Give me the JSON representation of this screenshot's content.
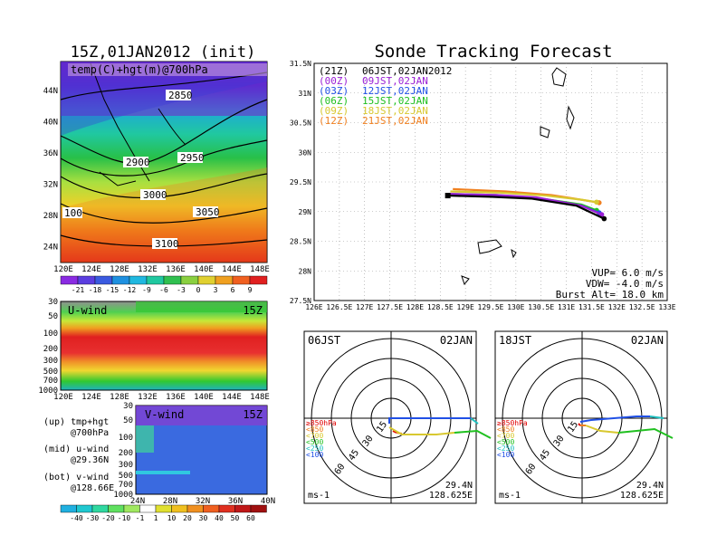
{
  "left": {
    "title": "15Z,01JAN2012 (init)",
    "map_label": "temp(C)+hgt(m)@700hPa",
    "lat_ticks": [
      "44N",
      "40N",
      "36N",
      "32N",
      "28N",
      "24N"
    ],
    "lon_ticks": [
      "120E",
      "124E",
      "128E",
      "132E",
      "136E",
      "140E",
      "144E",
      "148E"
    ],
    "contour_labels": [
      "2850",
      "2900",
      "2950",
      "3000",
      "3050",
      "3100",
      "100"
    ],
    "colorbar_ticks": [
      "-21",
      "-18",
      "-15",
      "-12",
      "-9",
      "-6",
      "-3",
      "0",
      "3",
      "6",
      "9"
    ],
    "u_label": "U-wind",
    "u_time": "15Z",
    "p_ticks": [
      "30",
      "50",
      "100",
      "200",
      "300",
      "500",
      "700",
      "1000"
    ],
    "v_label": "V-wind",
    "v_time": "15Z",
    "v_lat_ticks": [
      "24N",
      "28N",
      "32N",
      "36N",
      "40N"
    ],
    "wind_colorbar_ticks": [
      "-40",
      "-30",
      "-20",
      "-10",
      "-1",
      "1",
      "10",
      "20",
      "30",
      "40",
      "50",
      "60"
    ],
    "legend_up_1": "(up) tmp+hgt",
    "legend_up_2": "@700hPa",
    "legend_mid_1": "(mid) u-wind",
    "legend_mid_2": "@29.36N",
    "legend_bot_1": "(bot) v-wind",
    "legend_bot_2": "@128.66E"
  },
  "right": {
    "title": "Sonde Tracking Forecast",
    "lat_ticks": [
      "31.5N",
      "31N",
      "30.5N",
      "30N",
      "29.5N",
      "29N",
      "28.5N",
      "28N",
      "27.5N"
    ],
    "lon_ticks": [
      "126E",
      "126.5E",
      "127E",
      "127.5E",
      "128E",
      "128.5E",
      "129E",
      "129.5E",
      "130E",
      "130.5E",
      "131E",
      "131.5E",
      "132E",
      "132.5E",
      "133E"
    ],
    "legend": [
      {
        "run": "(21Z)",
        "time": "06JST,02JAN2012",
        "color": "#000000"
      },
      {
        "run": "(00Z)",
        "time": "09JST,02JAN",
        "color": "#9a1fd6"
      },
      {
        "run": "(03Z)",
        "time": "12JST,02JAN",
        "color": "#2050e6"
      },
      {
        "run": "(06Z)",
        "time": "15JST,02JAN",
        "color": "#20c020"
      },
      {
        "run": "(09Z)",
        "time": "18JST,02JAN",
        "color": "#d8c830"
      },
      {
        "run": "(12Z)",
        "time": "21JST,02JAN",
        "color": "#f08020"
      }
    ],
    "vup": "VUP=  6.0  m/s",
    "vdw": "VDW= -4.0  m/s",
    "burst": "Burst Alt=  18.0  km"
  },
  "hodo1": {
    "time": "06JST",
    "date": "02JAN",
    "lat": "29.4N",
    "lon": "128.625E",
    "unit": "ms-1",
    "rings": [
      "15",
      "30",
      "45",
      "60"
    ],
    "levels": [
      {
        "label": "≥850hPa",
        "color": "#e00000"
      },
      {
        "label": "<850",
        "color": "#f08020"
      },
      {
        "label": "<700",
        "color": "#d8c830"
      },
      {
        "label": "<500",
        "color": "#20c020"
      },
      {
        "label": "<250",
        "color": "#20c0c0"
      },
      {
        "label": "<100",
        "color": "#2050e6"
      }
    ]
  },
  "hodo2": {
    "time": "18JST",
    "date": "02JAN",
    "lat": "29.4N",
    "lon": "128.625E",
    "unit": "ms-1",
    "rings": [
      "15",
      "30",
      "45",
      "60"
    ],
    "levels": [
      {
        "label": "≥850hPa",
        "color": "#e00000"
      },
      {
        "label": "<850",
        "color": "#f08020"
      },
      {
        "label": "<700",
        "color": "#d8c830"
      },
      {
        "label": "<500",
        "color": "#20c020"
      },
      {
        "label": "<250",
        "color": "#20c0c0"
      },
      {
        "label": "<100",
        "color": "#2050e6"
      }
    ]
  },
  "chart_data": [
    {
      "type": "line",
      "title": "Sonde Tracking Forecast",
      "xlabel": "",
      "ylabel": "",
      "xlim": [
        126,
        133
      ],
      "ylim": [
        27.5,
        31.5
      ],
      "series": [
        {
          "name": "(21Z) 06JST,02JAN2012",
          "color": "#000000",
          "x": [
            128.65,
            129.5,
            130.3,
            131.2,
            131.75
          ],
          "y": [
            29.27,
            29.25,
            29.22,
            29.1,
            28.88
          ]
        },
        {
          "name": "(00Z) 09JST,02JAN",
          "color": "#9a1fd6",
          "x": [
            128.65,
            129.6,
            130.4,
            131.3,
            131.7
          ],
          "y": [
            29.3,
            29.28,
            29.24,
            29.1,
            28.95
          ]
        },
        {
          "name": "(03Z) 12JST,02JAN",
          "color": "#2050e6",
          "x": [
            128.65,
            129.6,
            130.4,
            131.3,
            131.65
          ],
          "y": [
            29.28,
            29.26,
            29.22,
            29.1,
            28.98
          ]
        },
        {
          "name": "(06Z) 15JST,02JAN",
          "color": "#20c020",
          "x": [
            128.65,
            129.6,
            130.5,
            131.3,
            131.6
          ],
          "y": [
            29.3,
            29.28,
            29.22,
            29.12,
            29.02
          ]
        },
        {
          "name": "(09Z) 18JST,02JAN",
          "color": "#d8c830",
          "x": [
            128.7,
            129.7,
            130.6,
            131.3,
            131.6
          ],
          "y": [
            29.34,
            29.32,
            29.27,
            29.2,
            29.16
          ]
        },
        {
          "name": "(12Z) 21JST,02JAN",
          "color": "#f08020",
          "x": [
            128.75,
            129.8,
            130.7,
            131.3,
            131.65
          ],
          "y": [
            29.38,
            29.34,
            29.28,
            29.2,
            29.15
          ]
        }
      ]
    }
  ]
}
